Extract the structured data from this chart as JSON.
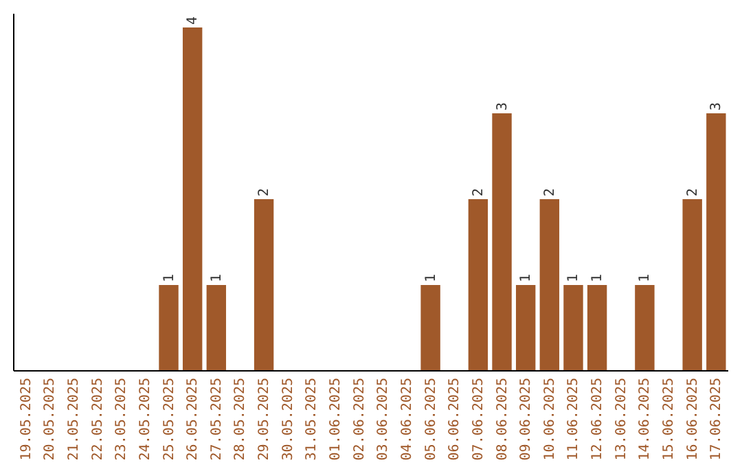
{
  "chart_data": {
    "type": "bar",
    "categories": [
      "19.05.2025",
      "20.05.2025",
      "21.05.2025",
      "22.05.2025",
      "23.05.2025",
      "24.05.2025",
      "25.05.2025",
      "26.05.2025",
      "27.05.2025",
      "28.05.2025",
      "29.05.2025",
      "30.05.2025",
      "31.05.2025",
      "01.06.2025",
      "02.06.2025",
      "03.06.2025",
      "04.06.2025",
      "05.06.2025",
      "06.06.2025",
      "07.06.2025",
      "08.06.2025",
      "09.06.2025",
      "10.06.2025",
      "11.06.2025",
      "12.06.2025",
      "13.06.2025",
      "14.06.2025",
      "15.06.2025",
      "16.06.2025",
      "17.06.2025"
    ],
    "values": [
      0,
      0,
      0,
      0,
      0,
      0,
      1,
      4,
      1,
      0,
      2,
      0,
      0,
      0,
      0,
      0,
      0,
      1,
      0,
      2,
      3,
      1,
      2,
      1,
      1,
      0,
      1,
      0,
      2,
      3
    ],
    "value_labels": [
      null,
      null,
      null,
      null,
      null,
      null,
      "1",
      "4",
      "1",
      null,
      "2",
      null,
      null,
      null,
      null,
      null,
      null,
      "1",
      null,
      "2",
      "3",
      "1",
      "2",
      "1",
      "1",
      null,
      "1",
      null,
      "2",
      "3"
    ],
    "color": "#a0592a",
    "ylim": [
      0,
      4
    ],
    "tick_labels": "x"
  }
}
